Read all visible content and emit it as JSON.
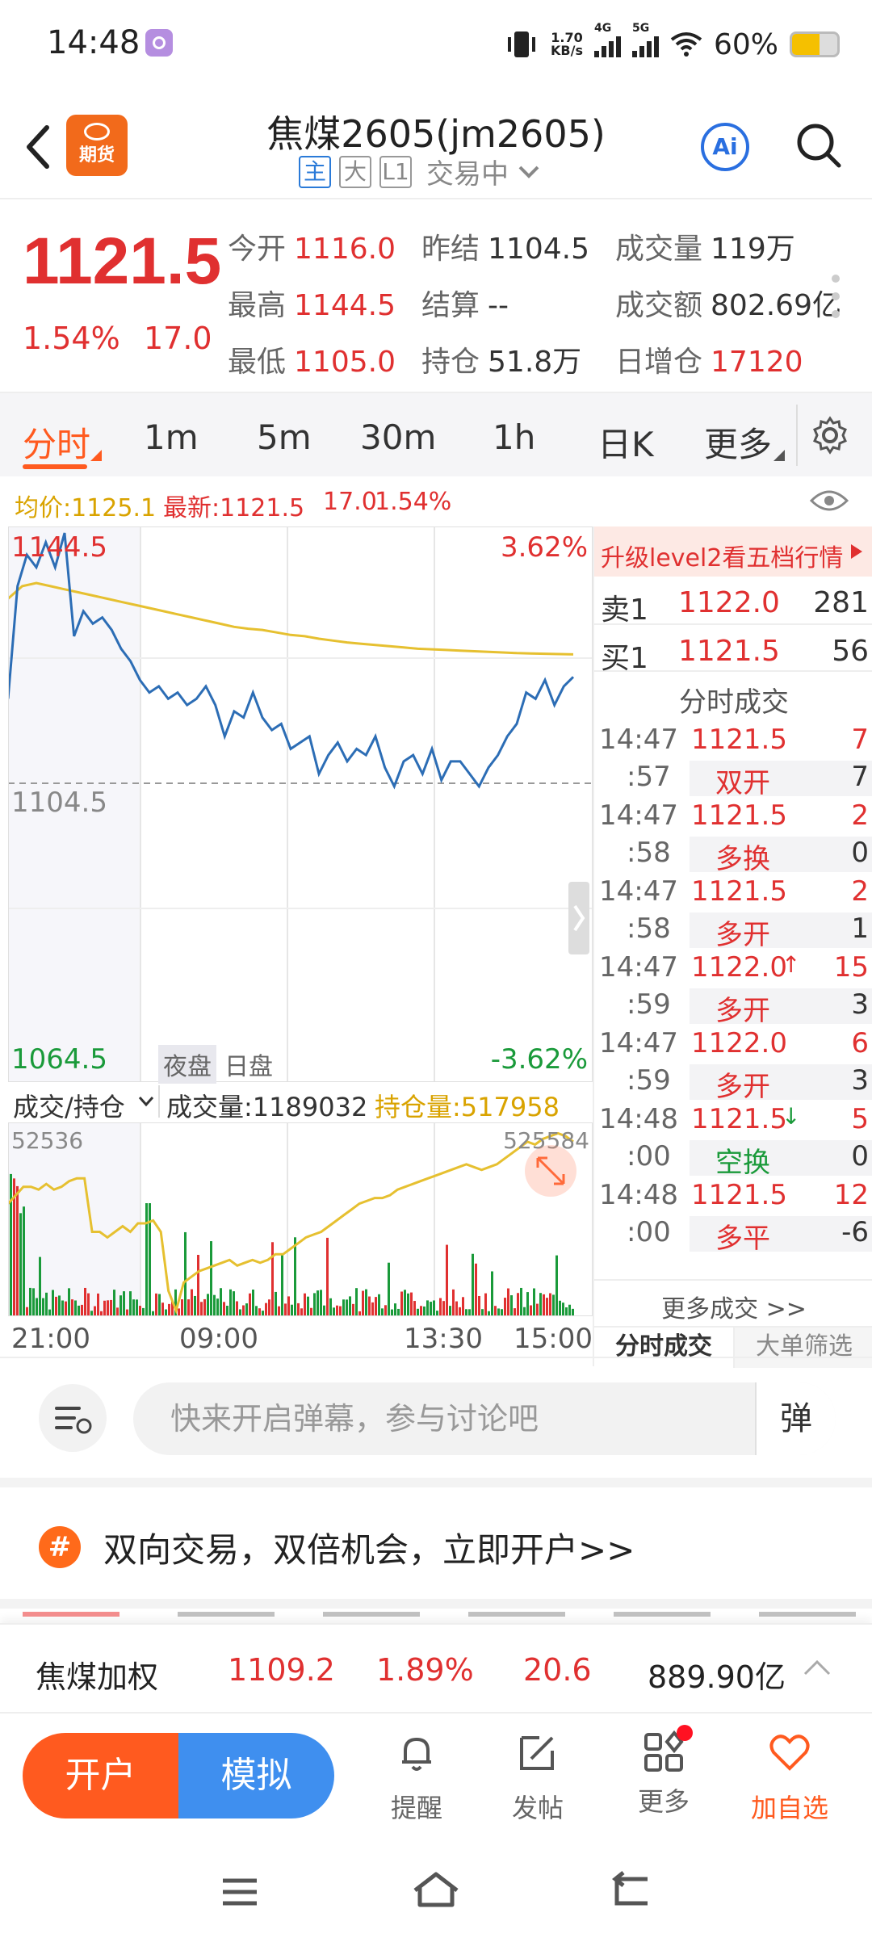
{
  "status": {
    "time": "14:48",
    "net_speed_top": "1.70",
    "net_speed_unit": "KB/s",
    "sig1": "4G",
    "sig2": "5G",
    "battery": "60%",
    "battery_level": 0.6
  },
  "header": {
    "logo_label": "期货",
    "title": "焦煤2605(jm2605)",
    "tags": [
      "主",
      "大",
      "L1"
    ],
    "state": "交易中",
    "ai_label": "Ai"
  },
  "quote": {
    "price": "1121.5",
    "pct": "1.54%",
    "change": "17.0",
    "fields": [
      {
        "k": "今开",
        "v": "1116.0",
        "color": "red"
      },
      {
        "k": "昨结",
        "v": "1104.5",
        "color": "dark"
      },
      {
        "k": "成交量",
        "v": "119万",
        "color": "dark"
      },
      {
        "k": "最高",
        "v": "1144.5",
        "color": "red"
      },
      {
        "k": "结算",
        "v": "--",
        "color": "dark"
      },
      {
        "k": "成交额",
        "v": "802.69亿",
        "color": "dark"
      },
      {
        "k": "最低",
        "v": "1105.0",
        "color": "red"
      },
      {
        "k": "持仓",
        "v": "51.8万",
        "color": "dark"
      },
      {
        "k": "日增仓",
        "v": "17120",
        "color": "red"
      }
    ]
  },
  "tabs": [
    "分时",
    "1m",
    "5m",
    "30m",
    "1h",
    "日K",
    "更多"
  ],
  "infoline": {
    "avg": "均价:1125.1",
    "latest": "最新:1121.5",
    "chg": "17.0",
    "pct": "1.54%"
  },
  "chart": {
    "y_top": "1144.5",
    "y_mid": "1104.5",
    "y_bot": "1064.5",
    "pct_top": "3.62%",
    "pct_bot": "-3.62%",
    "session_night": "夜盘",
    "session_day": "日盘",
    "vol_selector": "成交/持仓",
    "vol_label": "成交量:1189032",
    "oi_label": "持仓量:517958",
    "vol_left": "52536",
    "vol_right": "525584",
    "x_labels": [
      "21:00",
      "09:00",
      "13:30",
      "15:00"
    ]
  },
  "chart_data": {
    "type": "line",
    "ylim": [
      1064.5,
      1144.5
    ],
    "series": [
      {
        "values": [
          1118,
          1136,
          1141,
          1139,
          1143,
          1139,
          1144.5,
          1128,
          1132,
          1130,
          1131,
          1129,
          1126,
          1124,
          1121,
          1119,
          1120,
          1118,
          1119,
          1117,
          1118,
          1120,
          1117,
          1112,
          1116,
          1115,
          1119,
          1115,
          1113,
          1114,
          1110,
          1111,
          1112,
          1106,
          1109,
          1111,
          1108,
          1110,
          1109,
          1112,
          1107,
          1104,
          1108,
          1109,
          1106,
          1110,
          1105,
          1108,
          1108,
          1106,
          1104,
          1107,
          1109,
          1112,
          1114,
          1119,
          1118,
          1121,
          1117,
          1120,
          1121.5
        ]
      },
      {
        "values": [
          1134,
          1136,
          1136.5,
          1136,
          1135.5,
          1135,
          1134.5,
          1134,
          1133.5,
          1133,
          1132.5,
          1132,
          1131.5,
          1131,
          1130.5,
          1130,
          1129.5,
          1129.2,
          1129,
          1128.6,
          1128.2,
          1128,
          1127.6,
          1127.3,
          1127,
          1126.8,
          1126.6,
          1126.4,
          1126.2,
          1126,
          1125.9,
          1125.8,
          1125.7,
          1125.6,
          1125.5,
          1125.4,
          1125.3,
          1125.25,
          1125.2,
          1125.15,
          1125.1
        ]
      }
    ]
  },
  "orderbook": {
    "upgrade": "升级level2看五档行情",
    "ask_label": "卖1",
    "ask_price": "1122.0",
    "ask_qty": "281",
    "bid_label": "买1",
    "bid_price": "1121.5",
    "bid_qty": "56",
    "ticks_title": "分时成交",
    "ticks": [
      {
        "t1": "14:47",
        "t2": ":57",
        "price": "1121.5",
        "vol": "7",
        "type": "双开",
        "oi": "7",
        "tcolor": "red",
        "arrow": ""
      },
      {
        "t1": "14:47",
        "t2": ":58",
        "price": "1121.5",
        "vol": "2",
        "type": "多换",
        "oi": "0",
        "tcolor": "red",
        "arrow": ""
      },
      {
        "t1": "14:47",
        "t2": ":58",
        "price": "1121.5",
        "vol": "2",
        "type": "多开",
        "oi": "1",
        "tcolor": "red",
        "arrow": ""
      },
      {
        "t1": "14:47",
        "t2": ":59",
        "price": "1122.0",
        "vol": "15",
        "type": "多开",
        "oi": "3",
        "tcolor": "red",
        "arrow": "↑"
      },
      {
        "t1": "14:47",
        "t2": ":59",
        "price": "1122.0",
        "vol": "6",
        "type": "多开",
        "oi": "3",
        "tcolor": "red",
        "arrow": ""
      },
      {
        "t1": "14:48",
        "t2": ":00",
        "price": "1121.5",
        "vol": "5",
        "type": "空换",
        "oi": "0",
        "tcolor": "green",
        "arrow": "↓"
      },
      {
        "t1": "14:48",
        "t2": ":00",
        "price": "1121.5",
        "vol": "12",
        "type": "多平",
        "oi": "-6",
        "tcolor": "red",
        "arrow": ""
      }
    ],
    "more": "更多成交 >>",
    "bottom_tabs": [
      "分时成交",
      "大单筛选"
    ]
  },
  "danmu": {
    "placeholder": "快来开启弹幕，参与讨论吧",
    "btn": "弹"
  },
  "promo": {
    "text": "双向交易，双倍机会，立即开户>>"
  },
  "summary": {
    "name": "焦煤加权",
    "price": "1109.2",
    "pct": "1.89%",
    "chg": "20.6",
    "amount": "889.90亿"
  },
  "bottombar": {
    "open": "开户",
    "sim": "模拟",
    "items": [
      {
        "label": "提醒",
        "icon": "bell-icon"
      },
      {
        "label": "发帖",
        "icon": "edit-icon"
      },
      {
        "label": "更多",
        "icon": "apps-icon"
      },
      {
        "label": "加自选",
        "icon": "heart-icon"
      }
    ]
  },
  "colors": {
    "up": "#e03030",
    "down": "#1a9a3a",
    "price_line": "#2c6db5",
    "avg_line": "#e6c030",
    "accent": "#ff5a1f"
  }
}
